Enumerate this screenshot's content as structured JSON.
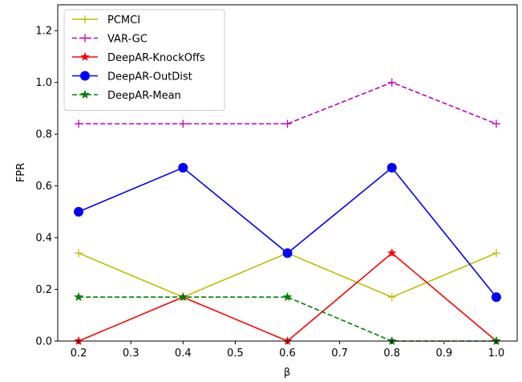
{
  "chart_data": {
    "type": "line",
    "xlabel": "β",
    "ylabel": "FPR",
    "xlim": [
      0.16,
      1.04
    ],
    "ylim": [
      0.0,
      1.3
    ],
    "xticks": [
      "0.2",
      "0.3",
      "0.4",
      "0.5",
      "0.6",
      "0.7",
      "0.8",
      "0.9",
      "1.0"
    ],
    "yticks": [
      "0.0",
      "0.2",
      "0.4",
      "0.6",
      "0.8",
      "1.0",
      "1.2"
    ],
    "grid": false,
    "legend_position": "top-left",
    "x": [
      0.2,
      0.4,
      0.6,
      0.8,
      1.0
    ],
    "series": [
      {
        "name": "PCMCI",
        "values": [
          0.34,
          0.17,
          0.34,
          0.17,
          0.34
        ],
        "color": "#bfbf00",
        "dash": "solid",
        "marker": "plus"
      },
      {
        "name": "VAR-GC",
        "values": [
          0.84,
          0.84,
          0.84,
          1.0,
          0.84
        ],
        "color": "#bf00bf",
        "dash": "dashed",
        "marker": "plus"
      },
      {
        "name": "DeepAR-KnockOffs",
        "values": [
          0.0,
          0.17,
          0.0,
          0.34,
          0.0
        ],
        "color": "#ff0000",
        "dash": "solid",
        "marker": "star"
      },
      {
        "name": "DeepAR-OutDist",
        "values": [
          0.5,
          0.67,
          0.34,
          0.67,
          0.17
        ],
        "color": "#0000ff",
        "dash": "solid",
        "marker": "circle"
      },
      {
        "name": "DeepAR-Mean",
        "values": [
          0.17,
          0.17,
          0.17,
          0.0,
          0.0
        ],
        "color": "#008000",
        "dash": "dashed",
        "marker": "star"
      }
    ]
  }
}
